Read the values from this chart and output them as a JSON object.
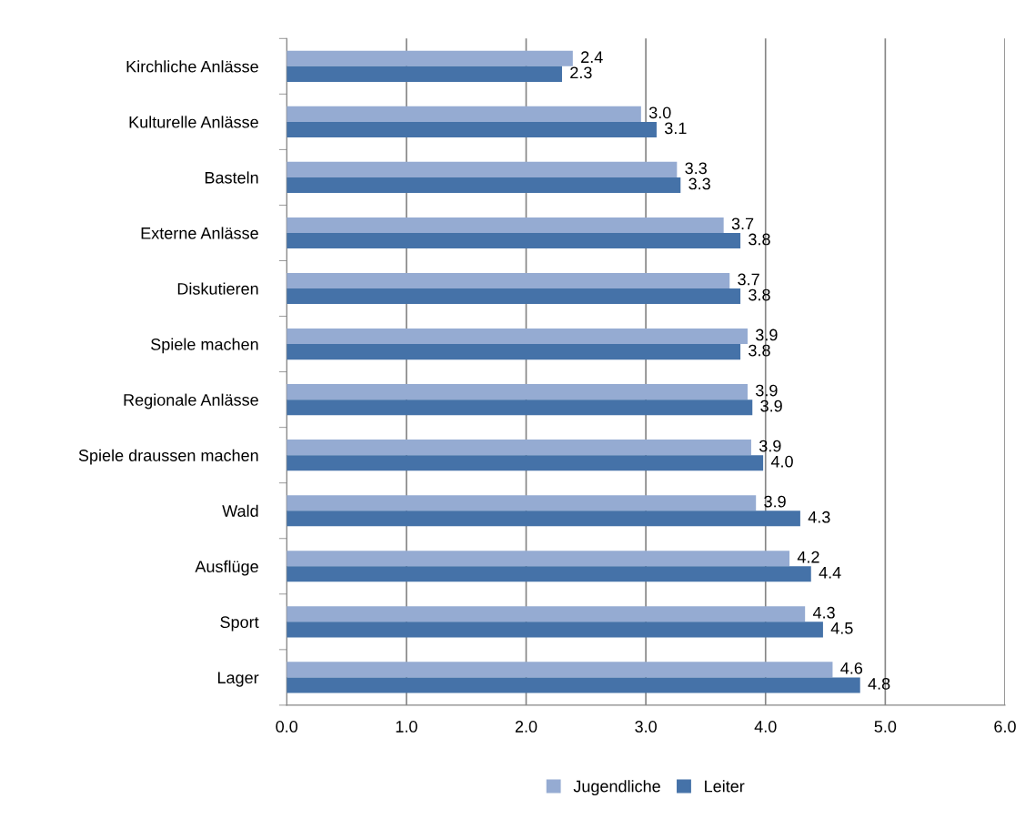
{
  "chart_data": {
    "type": "bar",
    "orientation": "horizontal",
    "categories": [
      "Kirchliche Anlässe",
      "Kulturelle Anlässe",
      "Basteln",
      "Externe Anlässe",
      "Diskutieren",
      "Spiele machen",
      "Regionale Anlässe",
      "Spiele draussen machen",
      "Wald",
      "Ausflüge",
      "Sport",
      "Lager"
    ],
    "series": [
      {
        "name": "Jugendliche",
        "color": "#95abd2",
        "values": [
          2.39,
          2.96,
          3.26,
          3.65,
          3.7,
          3.85,
          3.85,
          3.88,
          3.92,
          4.2,
          4.33,
          4.56
        ],
        "value_labels": [
          "2.4",
          "3.0",
          "3.3",
          "3.7",
          "3.7",
          "3.9",
          "3.9",
          "3.9",
          "3.9",
          "4.2",
          "4.3",
          "4.6"
        ]
      },
      {
        "name": "Leiter",
        "color": "#4572a8",
        "values": [
          2.3,
          3.09,
          3.29,
          3.79,
          3.79,
          3.79,
          3.89,
          3.98,
          4.29,
          4.38,
          4.48,
          4.79
        ],
        "value_labels": [
          "2.3",
          "3.1",
          "3.3",
          "3.8",
          "3.8",
          "3.8",
          "3.9",
          "4.0",
          "4.3",
          "4.4",
          "4.5",
          "4.8"
        ]
      }
    ],
    "xlim": [
      0,
      6
    ],
    "xticks": [
      {
        "value": 0,
        "label": "0.0"
      },
      {
        "value": 1,
        "label": "1.0"
      },
      {
        "value": 2,
        "label": "2.0"
      },
      {
        "value": 3,
        "label": "3.0"
      },
      {
        "value": 4,
        "label": "4.0"
      },
      {
        "value": 5,
        "label": "5.0"
      },
      {
        "value": 6,
        "label": "6.0"
      }
    ],
    "grid": "x",
    "legend": "bottom"
  }
}
